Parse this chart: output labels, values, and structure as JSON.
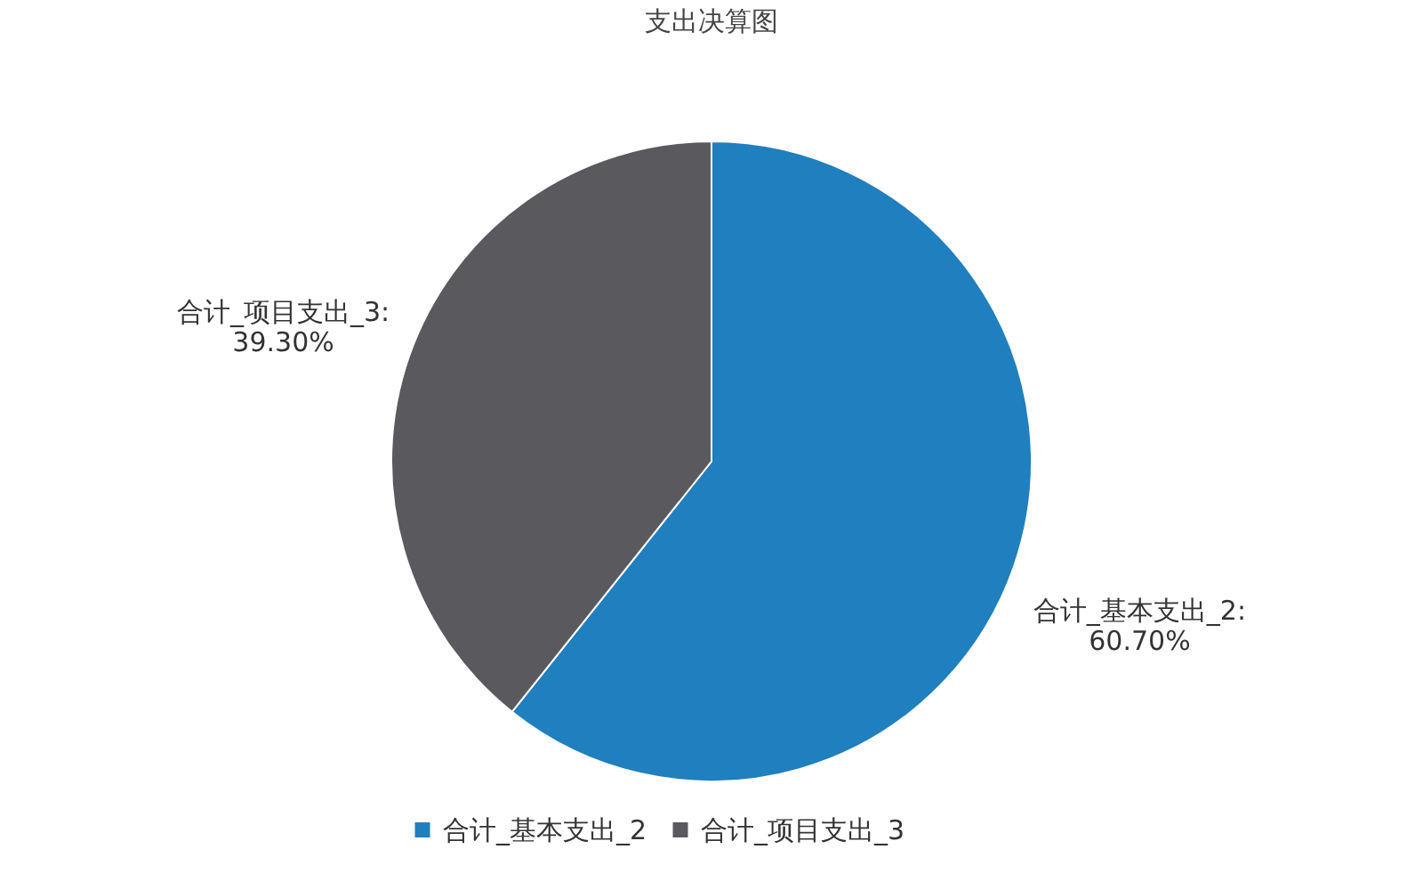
{
  "chart_data": {
    "type": "pie",
    "title": "支出决算图",
    "categories": [
      "合计_基本支出_2",
      "合计_项目支出_3"
    ],
    "values": [
      60.7,
      39.3
    ],
    "colors": [
      "#1f7fbf",
      "#5a595e"
    ],
    "value_labels": [
      "合计_基本支出_2:\n60.70%",
      "合计_项目支出_3:\n39.30%"
    ],
    "legend": "bottom"
  }
}
